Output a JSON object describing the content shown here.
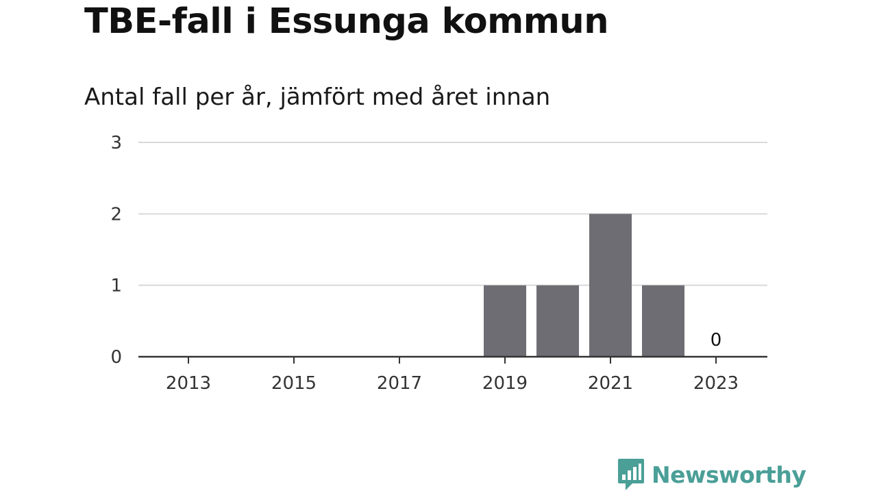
{
  "header": {
    "title": "TBE-fall i Essunga kommun",
    "subtitle": "Antal fall per år, jämfört med året innan"
  },
  "brand": {
    "name": "Newsworthy",
    "color": "#4a9f97",
    "icon": "bar-chart-speech-bubble-icon"
  },
  "colors": {
    "bar": "#6e6d73",
    "grid": "#d9d9d9",
    "axis": "#333333"
  },
  "chart_data": {
    "type": "bar",
    "title": "TBE-fall i Essunga kommun",
    "subtitle": "Antal fall per år, jämfört med året innan",
    "xlabel": "",
    "ylabel": "",
    "categories": [
      "2013",
      "2014",
      "2015",
      "2016",
      "2017",
      "2018",
      "2019",
      "2020",
      "2021",
      "2022",
      "2023"
    ],
    "values": [
      0,
      0,
      0,
      0,
      0,
      0,
      1,
      1,
      2,
      1,
      0
    ],
    "x_tick_labels": [
      "2013",
      "2015",
      "2017",
      "2019",
      "2021",
      "2023"
    ],
    "y_ticks": [
      "0",
      "1",
      "2",
      "3"
    ],
    "ylim": [
      0,
      3
    ],
    "grid": true,
    "data_labels": [
      {
        "category": "2023",
        "text": "0"
      }
    ]
  }
}
